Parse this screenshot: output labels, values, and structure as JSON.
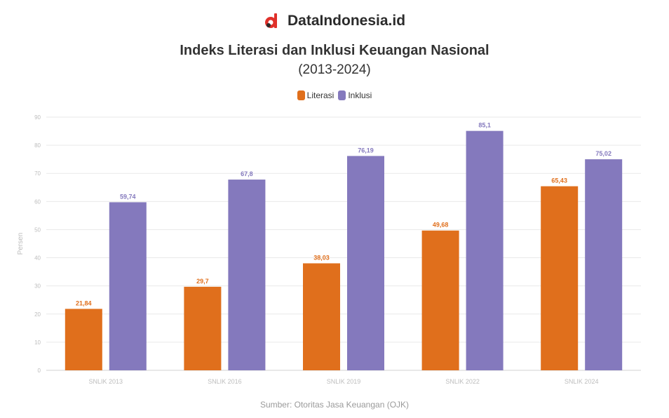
{
  "brand": {
    "name": "DataIndonesia.id",
    "logo_icon": "dataindonesia-logo-icon",
    "logo_color": "#e0302a"
  },
  "source_text": "Sumber: Otoritas Jasa Keuangan (OJK)",
  "colors": {
    "literasi": "#e06f1c",
    "inklusi": "#8479bd",
    "grid": "#e9e9e9",
    "axis_text": "#bdbdbd"
  },
  "chart_data": {
    "type": "bar",
    "title": "Indeks Literasi dan Inklusi Keuangan Nasional",
    "subtitle": "(2013-2024)",
    "ylabel": "Persen",
    "xlabel": "",
    "ylim": [
      0,
      90
    ],
    "yticks": [
      "0",
      "10",
      "20",
      "30",
      "40",
      "50",
      "60",
      "70",
      "80",
      "90"
    ],
    "grid": true,
    "legend_position": "top-center",
    "categories": [
      "SNLIK 2013",
      "SNLIK 2016",
      "SNLIK 2019",
      "SNLIK 2022",
      "SNLIK 2024"
    ],
    "series": [
      {
        "name": "Literasi",
        "color": "#e06f1c",
        "values": [
          21.84,
          29.7,
          38.03,
          49.68,
          65.43
        ],
        "labels": [
          "21,84",
          "29,7",
          "38,03",
          "49,68",
          "65,43"
        ]
      },
      {
        "name": "Inklusi",
        "color": "#8479bd",
        "values": [
          59.74,
          67.8,
          76.19,
          85.1,
          75.02
        ],
        "labels": [
          "59,74",
          "67,8",
          "76,19",
          "85,1",
          "75,02"
        ]
      }
    ]
  }
}
